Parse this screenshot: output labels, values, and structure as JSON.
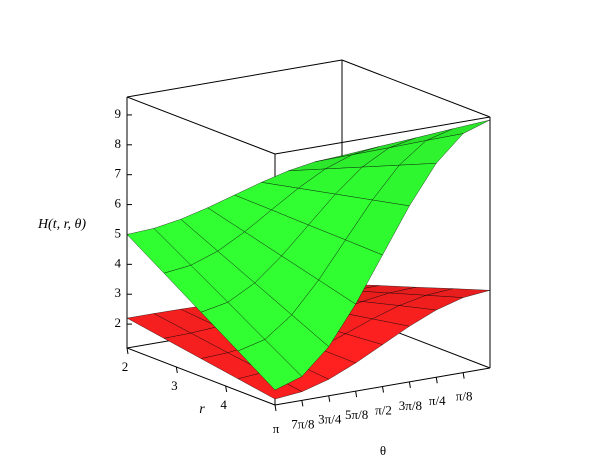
{
  "chart_data": {
    "type": "surface",
    "zlabel": "H(t, r, θ)",
    "xlabel": "r",
    "ylabel": "θ",
    "r": [
      2,
      2.75,
      3.5,
      4.25,
      5
    ],
    "theta": [
      3.1416,
      2.7489,
      2.3562,
      1.9635,
      1.5708,
      1.1781,
      0.7854,
      0.3927,
      0
    ],
    "rlim": [
      2,
      5
    ],
    "thetalim": [
      3.1416,
      0
    ],
    "zlim": [
      1.2,
      9.6
    ],
    "rticks": [
      2,
      3,
      4
    ],
    "thetaticks": [
      {
        "value": 3.1416,
        "label": "π"
      },
      {
        "value": 2.7489,
        "label": "7π/8"
      },
      {
        "value": 2.3562,
        "label": "3π/4"
      },
      {
        "value": 1.9635,
        "label": "5π/8"
      },
      {
        "value": 1.5708,
        "label": "π/2"
      },
      {
        "value": 1.1781,
        "label": "3π/8"
      },
      {
        "value": 0.7854,
        "label": "π/4"
      },
      {
        "value": 0.3927,
        "label": "π/8"
      }
    ],
    "zticks": [
      2,
      3,
      4,
      5,
      6,
      7,
      8,
      9
    ],
    "series": [
      {
        "color": "#ff2020",
        "z": [
          [
            2.2,
            2.2,
            2.19,
            2.17,
            2.15,
            2.13,
            2.11,
            2.1,
            2.1
          ],
          [
            2.0,
            2.02,
            2.08,
            2.16,
            2.26,
            2.36,
            2.45,
            2.51,
            2.53
          ],
          [
            1.8,
            1.84,
            1.97,
            2.16,
            2.38,
            2.6,
            2.78,
            2.91,
            2.95
          ],
          [
            1.6,
            1.67,
            1.86,
            2.15,
            2.49,
            2.83,
            3.12,
            3.31,
            3.38
          ],
          [
            1.4,
            1.49,
            1.75,
            2.14,
            2.6,
            3.06,
            3.45,
            3.71,
            3.8
          ]
        ]
      },
      {
        "color": "#30ff30",
        "z": [
          [
            5.0,
            5.05,
            5.2,
            5.43,
            5.7,
            5.97,
            6.2,
            6.35,
            6.4
          ],
          [
            4.18,
            4.29,
            4.61,
            5.1,
            5.68,
            6.25,
            6.74,
            7.06,
            7.18
          ],
          [
            3.35,
            3.53,
            4.02,
            4.77,
            5.65,
            6.53,
            7.28,
            7.77,
            7.95
          ],
          [
            2.53,
            2.76,
            3.43,
            4.44,
            5.63,
            6.81,
            7.82,
            8.49,
            8.73
          ],
          [
            1.7,
            2.0,
            2.84,
            4.11,
            5.6,
            7.09,
            8.36,
            9.2,
            9.5
          ]
        ]
      }
    ]
  }
}
